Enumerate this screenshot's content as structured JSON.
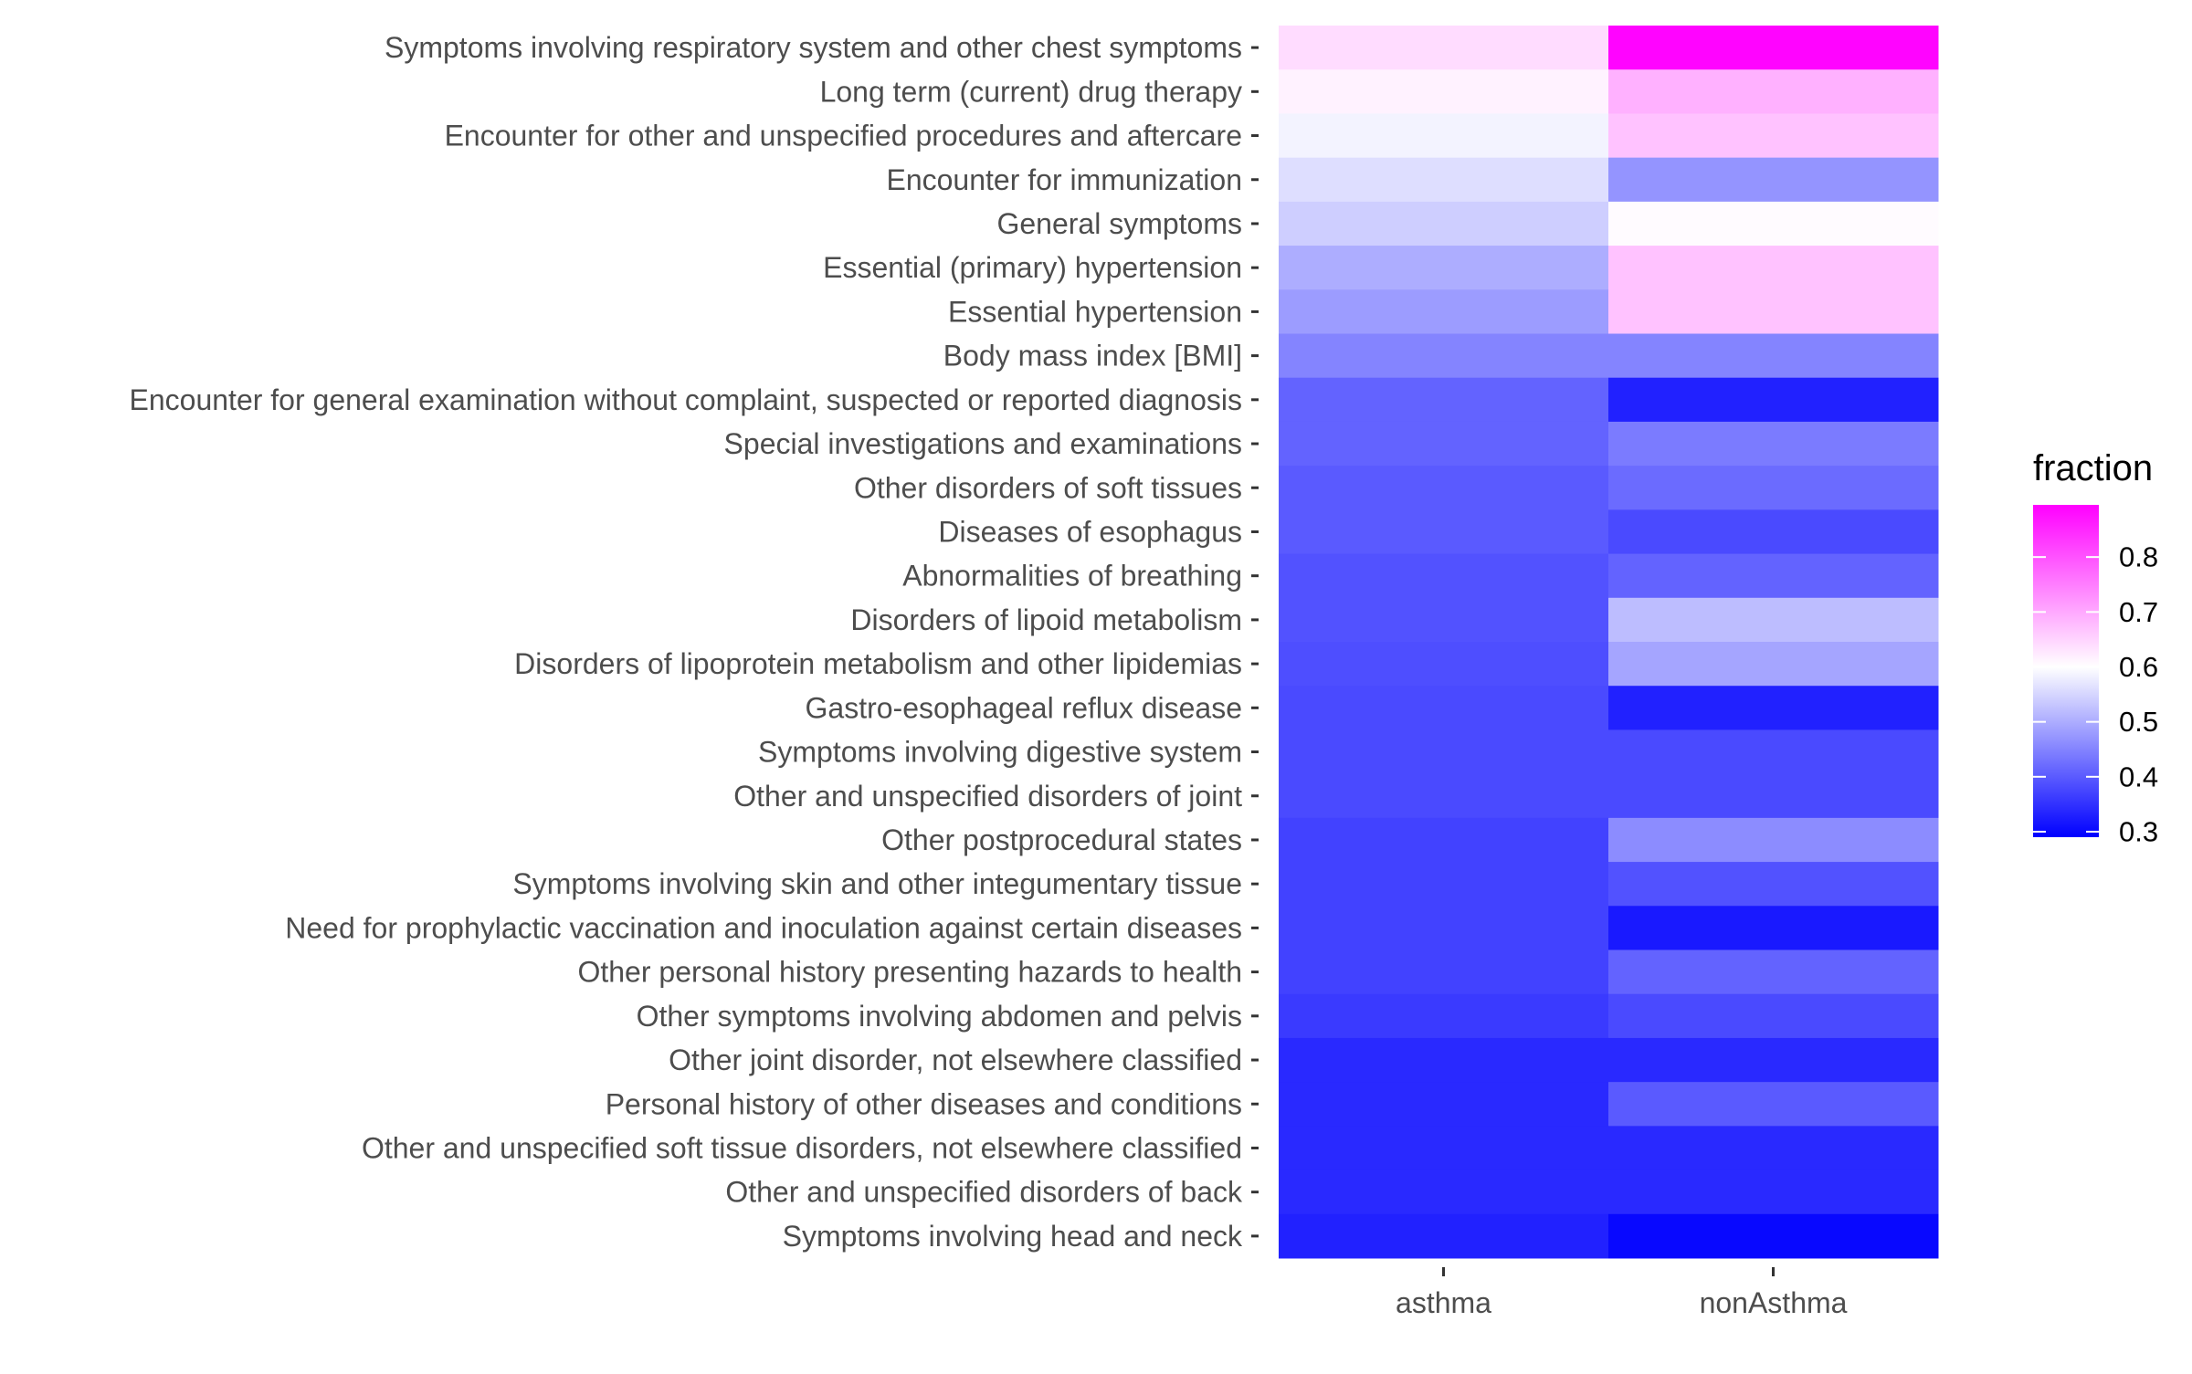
{
  "chart_data": {
    "type": "heatmap",
    "x_categories": [
      "asthma",
      "nonAsthma"
    ],
    "y_categories": [
      "Symptoms involving respiratory system and other chest symptoms",
      "Long term (current) drug therapy",
      "Encounter for other and unspecified procedures and aftercare",
      "Encounter for immunization",
      "General symptoms",
      "Essential (primary) hypertension",
      "Essential hypertension",
      "Body mass index [BMI]",
      "Encounter for general examination without complaint, suspected or reported diagnosis",
      "Special investigations and examinations",
      "Other disorders of soft tissues",
      "Diseases of esophagus",
      "Abnormalities of breathing",
      "Disorders of lipoid metabolism",
      "Disorders of lipoprotein metabolism and other lipidemias",
      "Gastro-esophageal reflux disease",
      "Symptoms involving digestive system",
      "Other and unspecified disorders of joint",
      "Other postprocedural states",
      "Symptoms involving skin and other integumentary tissue",
      "Need for prophylactic vaccination and inoculation against certain diseases",
      "Other personal history presenting hazards to health",
      "Other symptoms involving abdomen and pelvis",
      "Other joint disorder, not elsewhere classified",
      "Personal history of other diseases and conditions",
      "Other and unspecified soft tissue disorders, not elsewhere classified",
      "Other and unspecified disorders of back",
      "Symptoms involving head and neck"
    ],
    "values": [
      [
        0.64,
        0.89
      ],
      [
        0.615,
        0.69
      ],
      [
        0.585,
        0.67
      ],
      [
        0.56,
        0.47
      ],
      [
        0.54,
        0.605
      ],
      [
        0.5,
        0.67
      ],
      [
        0.48,
        0.67
      ],
      [
        0.45,
        0.45
      ],
      [
        0.41,
        0.33
      ],
      [
        0.41,
        0.44
      ],
      [
        0.4,
        0.42
      ],
      [
        0.4,
        0.38
      ],
      [
        0.39,
        0.41
      ],
      [
        0.39,
        0.52
      ],
      [
        0.385,
        0.49
      ],
      [
        0.38,
        0.33
      ],
      [
        0.38,
        0.38
      ],
      [
        0.38,
        0.38
      ],
      [
        0.37,
        0.46
      ],
      [
        0.37,
        0.39
      ],
      [
        0.37,
        0.32
      ],
      [
        0.37,
        0.41
      ],
      [
        0.36,
        0.38
      ],
      [
        0.34,
        0.34
      ],
      [
        0.34,
        0.4
      ],
      [
        0.34,
        0.34
      ],
      [
        0.34,
        0.34
      ],
      [
        0.33,
        0.3
      ]
    ],
    "legend": {
      "title": "fraction",
      "ticks": [
        "0.8",
        "0.7",
        "0.6",
        "0.5",
        "0.4",
        "0.3"
      ],
      "tick_values": [
        0.8,
        0.7,
        0.6,
        0.5,
        0.4,
        0.3
      ],
      "range": [
        0.29,
        0.895
      ],
      "colors": {
        "low": "#0000ff",
        "mid": "#ffffff",
        "high": "#ff00ff",
        "midpoint": 0.6
      }
    },
    "xlabel": "",
    "ylabel": "",
    "grid": false,
    "legend_placement": "right"
  }
}
